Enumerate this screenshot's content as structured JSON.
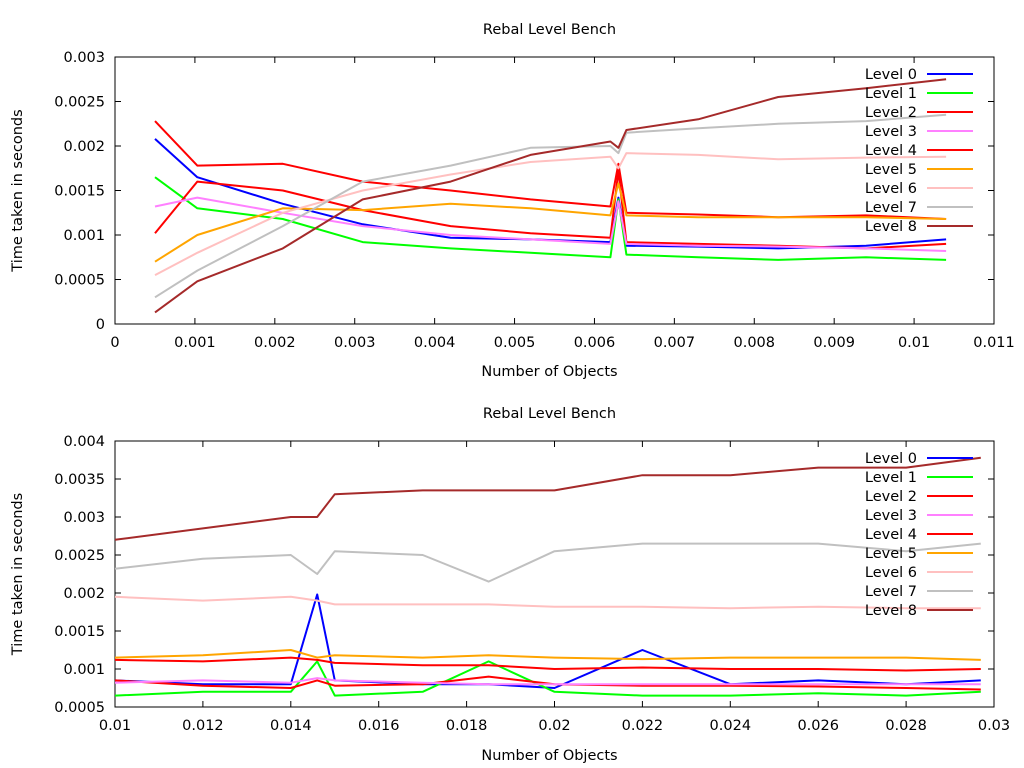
{
  "chart_data": [
    {
      "type": "line",
      "title": "Rebal Level Bench",
      "xlabel": "Number of Objects",
      "ylabel": "Time taken in seconds",
      "xlim": [
        0,
        0.011
      ],
      "ylim": [
        0,
        0.003
      ],
      "xticks": [
        "0",
        "0.001",
        "0.002",
        "0.003",
        "0.004",
        "0.005",
        "0.006",
        "0.007",
        "0.008",
        "0.009",
        "0.01",
        "0.011"
      ],
      "yticks": [
        "0",
        "0.0005",
        "0.001",
        "0.0015",
        "0.002",
        "0.0025",
        "0.003"
      ],
      "grid": false,
      "legend_position": "top-right",
      "x": [
        0.0005,
        0.00103,
        0.0021,
        0.0031,
        0.0042,
        0.0052,
        0.0062,
        0.0063,
        0.0064,
        0.0073,
        0.0083,
        0.0094,
        0.0104
      ],
      "series": [
        {
          "name": "Level 0",
          "color": "#0000ff",
          "values": [
            0.00208,
            0.00165,
            0.00135,
            0.00112,
            0.00097,
            0.00095,
            0.00092,
            0.00142,
            0.00088,
            0.00087,
            0.00085,
            0.00088,
            0.00095
          ]
        },
        {
          "name": "Level 1",
          "color": "#00ff00",
          "values": [
            0.00165,
            0.0013,
            0.00118,
            0.00092,
            0.00085,
            0.0008,
            0.00075,
            0.0014,
            0.00078,
            0.00075,
            0.00072,
            0.00075,
            0.00072
          ]
        },
        {
          "name": "Level 2",
          "color": "#ff0000",
          "values": [
            0.00102,
            0.0016,
            0.0015,
            0.00128,
            0.0011,
            0.00102,
            0.00097,
            0.00172,
            0.00092,
            0.0009,
            0.00088,
            0.00085,
            0.0009
          ]
        },
        {
          "name": "Level 3",
          "color": "#ff80ff",
          "values": [
            0.00132,
            0.00142,
            0.00125,
            0.0011,
            0.001,
            0.00095,
            0.0009,
            0.00138,
            0.0009,
            0.00088,
            0.00087,
            0.00085,
            0.00082
          ]
        },
        {
          "name": "Level 4",
          "color": "#ff0000",
          "values": [
            0.00228,
            0.00178,
            0.0018,
            0.0016,
            0.0015,
            0.0014,
            0.00132,
            0.0018,
            0.00125,
            0.00123,
            0.0012,
            0.00122,
            0.00118
          ]
        },
        {
          "name": "Level 5",
          "color": "#ffa500",
          "values": [
            0.0007,
            0.001,
            0.0013,
            0.00128,
            0.00135,
            0.0013,
            0.00122,
            0.00158,
            0.00122,
            0.0012,
            0.0012,
            0.0012,
            0.00118
          ]
        },
        {
          "name": "Level 6",
          "color": "#ffc0c0",
          "values": [
            0.00055,
            0.0008,
            0.00125,
            0.0015,
            0.00168,
            0.00182,
            0.00188,
            0.00175,
            0.00192,
            0.0019,
            0.00185,
            0.00187,
            0.00188
          ]
        },
        {
          "name": "Level 7",
          "color": "#c0c0c0",
          "values": [
            0.0003,
            0.0006,
            0.0011,
            0.0016,
            0.00178,
            0.00198,
            0.002,
            0.00192,
            0.00215,
            0.0022,
            0.00225,
            0.00228,
            0.00235
          ]
        },
        {
          "name": "Level 8",
          "color": "#a52a2a",
          "values": [
            0.00013,
            0.00048,
            0.00085,
            0.0014,
            0.0016,
            0.0019,
            0.00205,
            0.00198,
            0.00218,
            0.0023,
            0.00255,
            0.00265,
            0.00275
          ]
        }
      ]
    },
    {
      "type": "line",
      "title": "Rebal Level Bench",
      "xlabel": "Number of Objects",
      "ylabel": "Time taken in seconds",
      "xlim": [
        0.01,
        0.03
      ],
      "ylim": [
        0.0005,
        0.004
      ],
      "xticks": [
        "0.01",
        "0.012",
        "0.014",
        "0.016",
        "0.018",
        "0.02",
        "0.022",
        "0.024",
        "0.026",
        "0.028",
        "0.03"
      ],
      "yticks": [
        "0.0005",
        "0.001",
        "0.0015",
        "0.002",
        "0.0025",
        "0.003",
        "0.0035",
        "0.004"
      ],
      "grid": false,
      "legend_position": "top-right",
      "x": [
        0.01,
        0.012,
        0.014,
        0.0146,
        0.015,
        0.017,
        0.0185,
        0.02,
        0.022,
        0.024,
        0.026,
        0.028,
        0.0297
      ],
      "series": [
        {
          "name": "Level 0",
          "color": "#0000ff",
          "values": [
            0.00085,
            0.0008,
            0.0008,
            0.00198,
            0.00085,
            0.0008,
            0.0008,
            0.00075,
            0.00125,
            0.0008,
            0.00085,
            0.0008,
            0.00085
          ]
        },
        {
          "name": "Level 1",
          "color": "#00ff00",
          "values": [
            0.00065,
            0.0007,
            0.0007,
            0.0011,
            0.00065,
            0.0007,
            0.0011,
            0.0007,
            0.00065,
            0.00065,
            0.00068,
            0.00065,
            0.0007
          ]
        },
        {
          "name": "Level 2",
          "color": "#ff0000",
          "values": [
            0.00085,
            0.00078,
            0.00075,
            0.00085,
            0.00078,
            0.0008,
            0.0009,
            0.0008,
            0.00078,
            0.00078,
            0.00077,
            0.00075,
            0.00073
          ]
        },
        {
          "name": "Level 3",
          "color": "#ff80ff",
          "values": [
            0.00082,
            0.00085,
            0.00082,
            0.00088,
            0.00085,
            0.00082,
            0.0008,
            0.0008,
            0.0008,
            0.0008,
            0.0008,
            0.0008,
            0.0008
          ]
        },
        {
          "name": "Level 4",
          "color": "#ff0000",
          "values": [
            0.00112,
            0.0011,
            0.00115,
            0.00112,
            0.00108,
            0.00105,
            0.00105,
            0.001,
            0.00102,
            0.001,
            0.001,
            0.00098,
            0.001
          ]
        },
        {
          "name": "Level 5",
          "color": "#ffa500",
          "values": [
            0.00115,
            0.00118,
            0.00125,
            0.00115,
            0.00118,
            0.00115,
            0.00118,
            0.00115,
            0.00113,
            0.00115,
            0.00115,
            0.00115,
            0.00112
          ]
        },
        {
          "name": "Level 6",
          "color": "#ffc0c0",
          "values": [
            0.00195,
            0.0019,
            0.00195,
            0.0019,
            0.00185,
            0.00185,
            0.00185,
            0.00182,
            0.00182,
            0.0018,
            0.00182,
            0.0018,
            0.0018
          ]
        },
        {
          "name": "Level 7",
          "color": "#c0c0c0",
          "values": [
            0.00232,
            0.00245,
            0.0025,
            0.00225,
            0.00255,
            0.0025,
            0.00215,
            0.00255,
            0.00265,
            0.00265,
            0.00265,
            0.00255,
            0.00265
          ]
        },
        {
          "name": "Level 8",
          "color": "#a52a2a",
          "values": [
            0.0027,
            0.00285,
            0.003,
            0.003,
            0.0033,
            0.00335,
            0.00335,
            0.00335,
            0.00355,
            0.00355,
            0.00365,
            0.00365,
            0.00378
          ]
        }
      ]
    }
  ]
}
